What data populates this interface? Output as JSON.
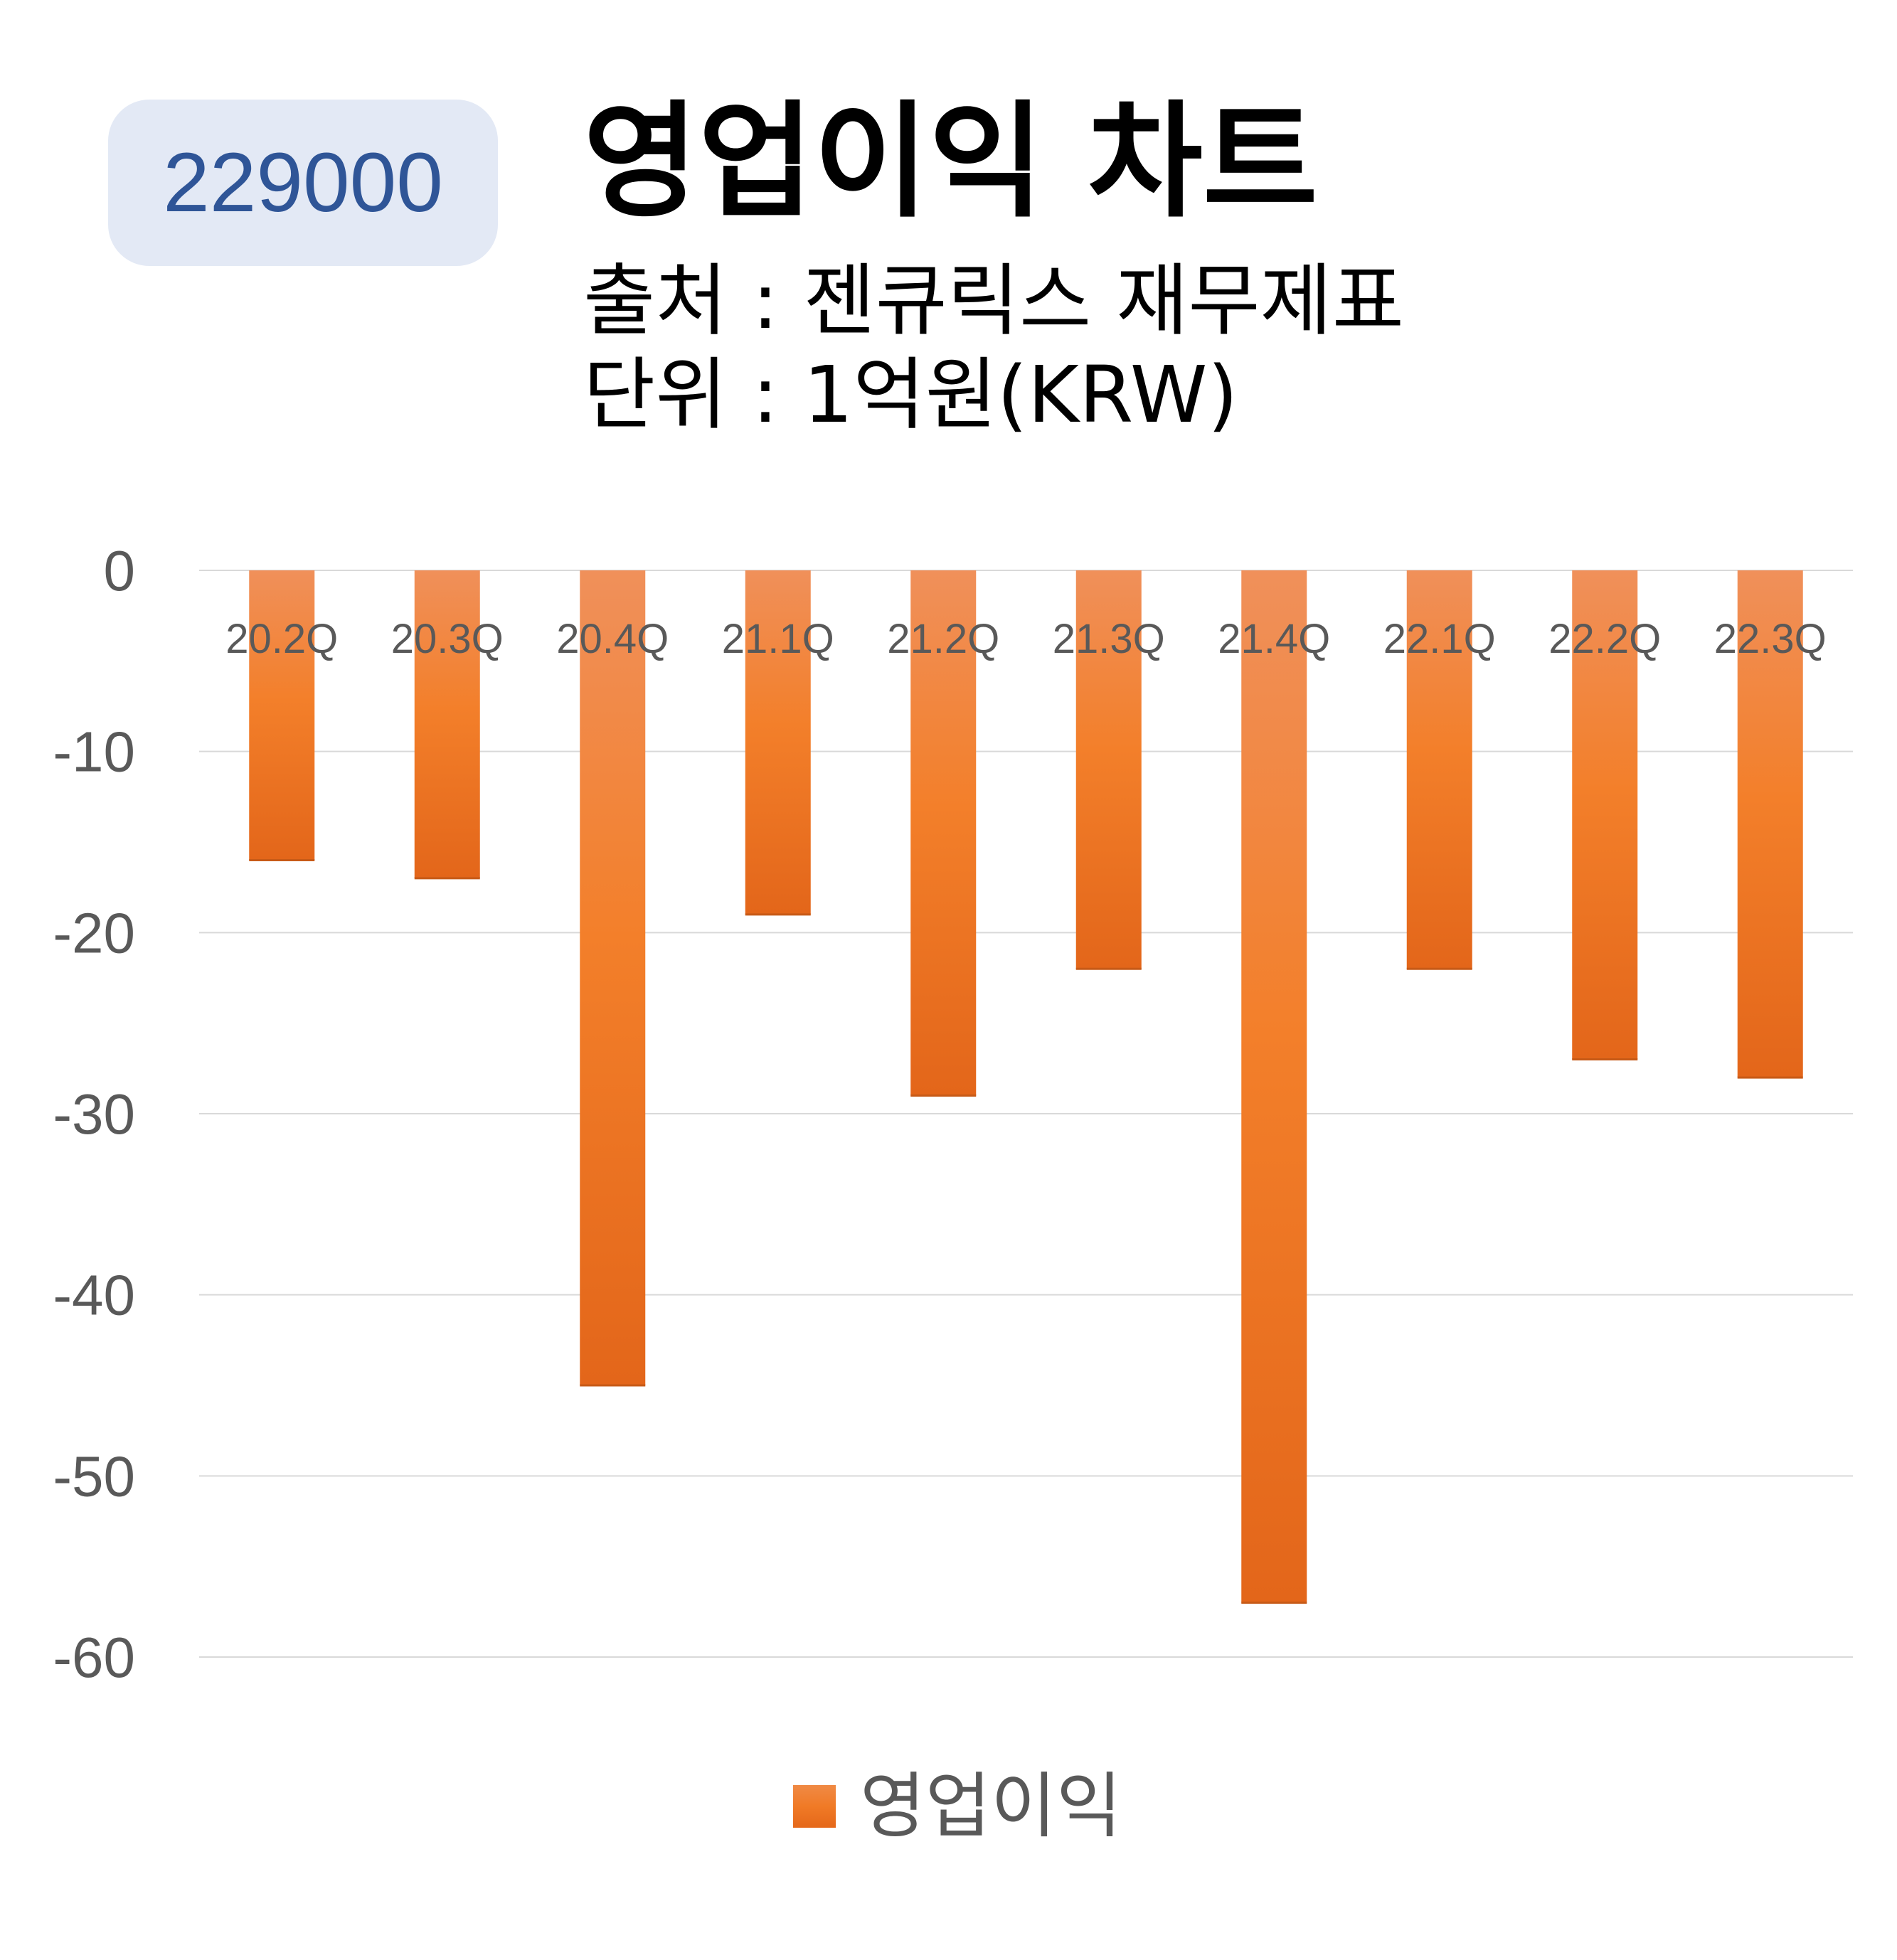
{
  "header": {
    "code": "229000",
    "title": "영업이익 차트",
    "source": "출처 : 젠큐릭스 재무제표",
    "unit": "단위 : 1억원(KRW)"
  },
  "colors": {
    "bar_top": "#f0905a",
    "bar_mid": "#f37f2a",
    "bar_bottom": "#e3661a",
    "badge_bg": "#e3e9f5",
    "badge_text": "#2f5597",
    "gridline": "#d9d9d9",
    "axis_text": "#595959"
  },
  "chart_data": {
    "type": "bar",
    "title": "영업이익 차트",
    "categories": [
      "20.2Q",
      "20.3Q",
      "20.4Q",
      "21.1Q",
      "21.2Q",
      "21.3Q",
      "21.4Q",
      "22.1Q",
      "22.2Q",
      "22.3Q"
    ],
    "series": [
      {
        "name": "영업이익",
        "values": [
          -16,
          -17,
          -45,
          -19,
          -29,
          -22,
          -57,
          -22,
          -27,
          -28
        ]
      }
    ],
    "ylim": [
      -60,
      0
    ],
    "yticks": [
      0,
      -10,
      -20,
      -30,
      -40,
      -50,
      -60
    ],
    "xlabel": "",
    "ylabel": "",
    "grid": true,
    "legend": "bottom"
  },
  "legend": {
    "label": "영업이익"
  }
}
